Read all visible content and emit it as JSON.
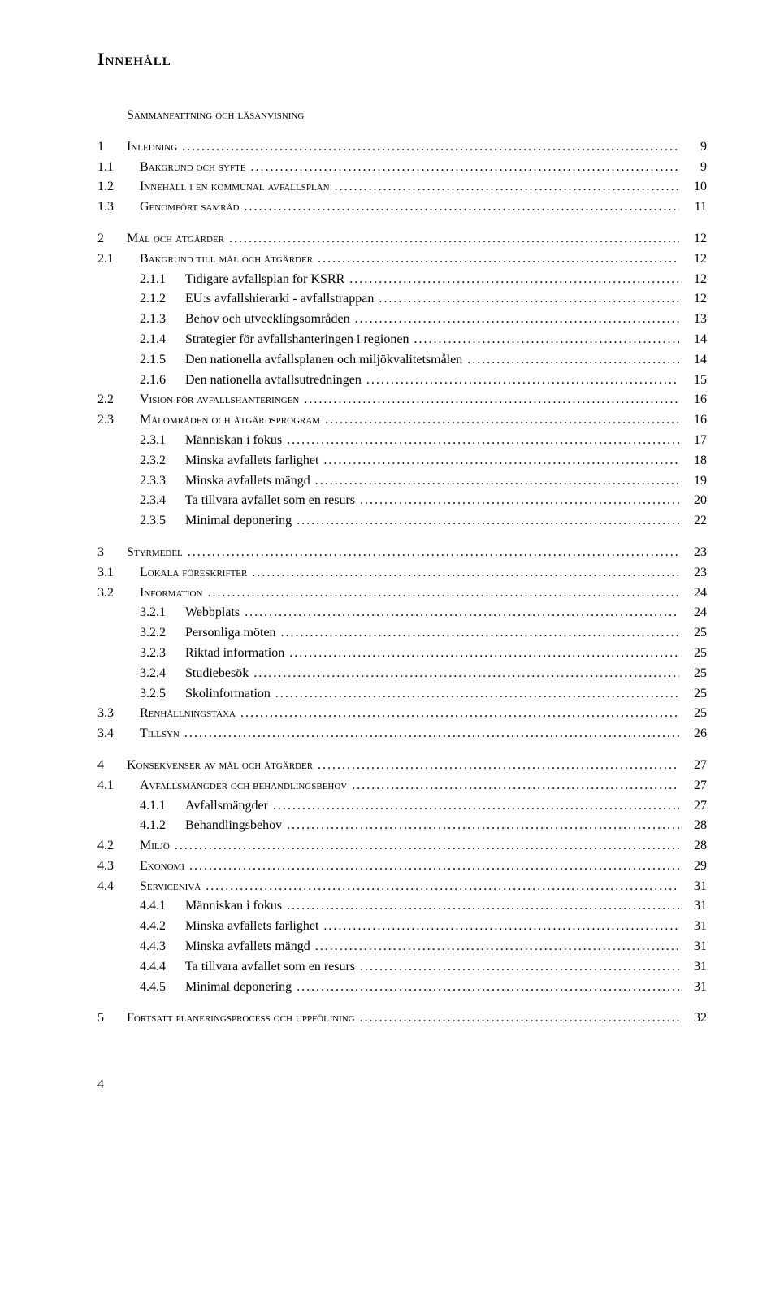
{
  "heading": "Innehåll",
  "footer_page": "4",
  "entries": [
    {
      "level": 0,
      "num": "",
      "label": "Sammanfattning och läsanvisning",
      "page": "",
      "gap": false,
      "smallcaps": true,
      "leader": false
    },
    {
      "level": 0,
      "num": "1",
      "label": "Inledning",
      "page": "9",
      "gap": true,
      "smallcaps": true,
      "leader": true
    },
    {
      "level": 1,
      "num": "1.1",
      "label": "Bakgrund och syfte",
      "page": "9",
      "gap": false,
      "smallcaps": true,
      "leader": true
    },
    {
      "level": 1,
      "num": "1.2",
      "label": "Innehåll i en kommunal avfallsplan",
      "page": "10",
      "gap": false,
      "smallcaps": true,
      "leader": true
    },
    {
      "level": 1,
      "num": "1.3",
      "label": "Genomfört samråd",
      "page": "11",
      "gap": false,
      "smallcaps": true,
      "leader": true
    },
    {
      "level": 0,
      "num": "2",
      "label": "Mål och åtgärder",
      "page": "12",
      "gap": true,
      "smallcaps": true,
      "leader": true
    },
    {
      "level": 1,
      "num": "2.1",
      "label": "Bakgrund till mål och åtgärder",
      "page": "12",
      "gap": false,
      "smallcaps": true,
      "leader": true
    },
    {
      "level": 2,
      "num": "2.1.1",
      "label": "Tidigare avfallsplan för KSRR",
      "page": "12",
      "gap": false,
      "smallcaps": false,
      "leader": true
    },
    {
      "level": 2,
      "num": "2.1.2",
      "label": "EU:s avfallshierarki - avfallstrappan",
      "page": "12",
      "gap": false,
      "smallcaps": false,
      "leader": true
    },
    {
      "level": 2,
      "num": "2.1.3",
      "label": "Behov och utvecklingsområden",
      "page": "13",
      "gap": false,
      "smallcaps": false,
      "leader": true
    },
    {
      "level": 2,
      "num": "2.1.4",
      "label": "Strategier för avfallshanteringen i regionen",
      "page": "14",
      "gap": false,
      "smallcaps": false,
      "leader": true
    },
    {
      "level": 2,
      "num": "2.1.5",
      "label": "Den nationella avfallsplanen och miljökvalitetsmålen",
      "page": "14",
      "gap": false,
      "smallcaps": false,
      "leader": true
    },
    {
      "level": 2,
      "num": "2.1.6",
      "label": "Den nationella avfallsutredningen",
      "page": "15",
      "gap": false,
      "smallcaps": false,
      "leader": true
    },
    {
      "level": 1,
      "num": "2.2",
      "label": "Vision för avfallshanteringen",
      "page": "16",
      "gap": false,
      "smallcaps": true,
      "leader": true
    },
    {
      "level": 1,
      "num": "2.3",
      "label": "Målområden och åtgärdsprogram",
      "page": "16",
      "gap": false,
      "smallcaps": true,
      "leader": true
    },
    {
      "level": 2,
      "num": "2.3.1",
      "label": "Människan i fokus",
      "page": "17",
      "gap": false,
      "smallcaps": false,
      "leader": true
    },
    {
      "level": 2,
      "num": "2.3.2",
      "label": "Minska avfallets farlighet",
      "page": "18",
      "gap": false,
      "smallcaps": false,
      "leader": true
    },
    {
      "level": 2,
      "num": "2.3.3",
      "label": "Minska avfallets mängd",
      "page": "19",
      "gap": false,
      "smallcaps": false,
      "leader": true
    },
    {
      "level": 2,
      "num": "2.3.4",
      "label": "Ta tillvara avfallet som en resurs",
      "page": "20",
      "gap": false,
      "smallcaps": false,
      "leader": true
    },
    {
      "level": 2,
      "num": "2.3.5",
      "label": "Minimal deponering",
      "page": "22",
      "gap": false,
      "smallcaps": false,
      "leader": true
    },
    {
      "level": 0,
      "num": "3",
      "label": "Styrmedel",
      "page": "23",
      "gap": true,
      "smallcaps": true,
      "leader": true
    },
    {
      "level": 1,
      "num": "3.1",
      "label": "Lokala föreskrifter",
      "page": "23",
      "gap": false,
      "smallcaps": true,
      "leader": true
    },
    {
      "level": 1,
      "num": "3.2",
      "label": "Information",
      "page": "24",
      "gap": false,
      "smallcaps": true,
      "leader": true
    },
    {
      "level": 2,
      "num": "3.2.1",
      "label": "Webbplats",
      "page": "24",
      "gap": false,
      "smallcaps": false,
      "leader": true
    },
    {
      "level": 2,
      "num": "3.2.2",
      "label": "Personliga möten",
      "page": "25",
      "gap": false,
      "smallcaps": false,
      "leader": true
    },
    {
      "level": 2,
      "num": "3.2.3",
      "label": "Riktad information",
      "page": "25",
      "gap": false,
      "smallcaps": false,
      "leader": true
    },
    {
      "level": 2,
      "num": "3.2.4",
      "label": "Studiebesök",
      "page": "25",
      "gap": false,
      "smallcaps": false,
      "leader": true
    },
    {
      "level": 2,
      "num": "3.2.5",
      "label": "Skolinformation",
      "page": "25",
      "gap": false,
      "smallcaps": false,
      "leader": true
    },
    {
      "level": 1,
      "num": "3.3",
      "label": "Renhållningstaxa",
      "page": "25",
      "gap": false,
      "smallcaps": true,
      "leader": true
    },
    {
      "level": 1,
      "num": "3.4",
      "label": "Tillsyn",
      "page": "26",
      "gap": false,
      "smallcaps": true,
      "leader": true
    },
    {
      "level": 0,
      "num": "4",
      "label": "Konsekvenser av mål och åtgärder",
      "page": "27",
      "gap": true,
      "smallcaps": true,
      "leader": true
    },
    {
      "level": 1,
      "num": "4.1",
      "label": "Avfallsmängder och behandlingsbehov",
      "page": "27",
      "gap": false,
      "smallcaps": true,
      "leader": true
    },
    {
      "level": 2,
      "num": "4.1.1",
      "label": "Avfallsmängder",
      "page": "27",
      "gap": false,
      "smallcaps": false,
      "leader": true
    },
    {
      "level": 2,
      "num": "4.1.2",
      "label": "Behandlingsbehov",
      "page": "28",
      "gap": false,
      "smallcaps": false,
      "leader": true
    },
    {
      "level": 1,
      "num": "4.2",
      "label": "Miljö",
      "page": "28",
      "gap": false,
      "smallcaps": true,
      "leader": true
    },
    {
      "level": 1,
      "num": "4.3",
      "label": "Ekonomi",
      "page": "29",
      "gap": false,
      "smallcaps": true,
      "leader": true
    },
    {
      "level": 1,
      "num": "4.4",
      "label": "Servicenivå",
      "page": "31",
      "gap": false,
      "smallcaps": true,
      "leader": true
    },
    {
      "level": 2,
      "num": "4.4.1",
      "label": "Människan i fokus",
      "page": "31",
      "gap": false,
      "smallcaps": false,
      "leader": true
    },
    {
      "level": 2,
      "num": "4.4.2",
      "label": "Minska avfallets farlighet",
      "page": "31",
      "gap": false,
      "smallcaps": false,
      "leader": true
    },
    {
      "level": 2,
      "num": "4.4.3",
      "label": "Minska avfallets mängd",
      "page": "31",
      "gap": false,
      "smallcaps": false,
      "leader": true
    },
    {
      "level": 2,
      "num": "4.4.4",
      "label": "Ta tillvara avfallet som en resurs",
      "page": "31",
      "gap": false,
      "smallcaps": false,
      "leader": true
    },
    {
      "level": 2,
      "num": "4.4.5",
      "label": "Minimal deponering",
      "page": "31",
      "gap": false,
      "smallcaps": false,
      "leader": true
    },
    {
      "level": 0,
      "num": "5",
      "label": "Fortsatt planeringsprocess och uppföljning",
      "page": "32",
      "gap": true,
      "smallcaps": true,
      "leader": true
    }
  ]
}
